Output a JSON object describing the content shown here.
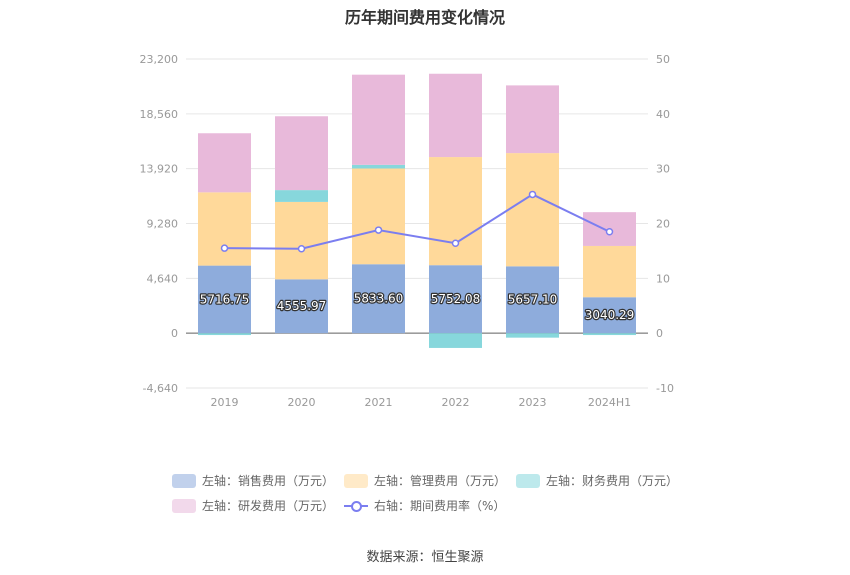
{
  "title": "历年期间费用变化情况",
  "source": "数据来源：恒生聚源",
  "legend": [
    {
      "label": "左轴：销售费用（万元）",
      "color": "#8eacdc",
      "kind": "bar"
    },
    {
      "label": "左轴：管理费用（万元）",
      "color": "#ffd99a",
      "kind": "bar"
    },
    {
      "label": "左轴：财务费用（万元）",
      "color": "#87d7dc",
      "kind": "bar"
    },
    {
      "label": "左轴：研发费用（万元）",
      "color": "#e8b9da",
      "kind": "bar"
    },
    {
      "label": "右轴：期间费用率（%）",
      "color": "#7b7ef0",
      "kind": "line"
    }
  ],
  "chart_data": {
    "type": "bar",
    "stacked": true,
    "categories": [
      "2019",
      "2020",
      "2021",
      "2022",
      "2023",
      "2024H1"
    ],
    "left_axis": {
      "ylim": [
        -4640,
        23200
      ],
      "ticks": [
        -4640,
        0,
        4640,
        9280,
        13920,
        18560,
        23200
      ],
      "tick_labels": [
        "-4,640",
        "0",
        "4,640",
        "9,280",
        "13,920",
        "18,560",
        "23,200"
      ]
    },
    "right_axis": {
      "ylim": [
        -10,
        50
      ],
      "ticks": [
        -10,
        0,
        10,
        20,
        30,
        40,
        50
      ],
      "tick_labels": [
        "-10",
        "0",
        "10",
        "20",
        "30",
        "40",
        "50"
      ]
    },
    "series": [
      {
        "name": "左轴：销售费用（万元）",
        "axis": "left",
        "color": "#8eacdc",
        "values": [
          5716.75,
          4555.97,
          5833.6,
          5752.08,
          5657.1,
          3040.29
        ],
        "labels": [
          "5716.75",
          "4555.97",
          "5833.60",
          "5752.08",
          "5657.10",
          "3040.29"
        ]
      },
      {
        "name": "左轴：管理费用（万元）",
        "axis": "left",
        "color": "#ffd99a",
        "values": [
          6200,
          6550,
          8100,
          9150,
          9580,
          4340
        ]
      },
      {
        "name": "左轴：财务费用（万元）",
        "axis": "left",
        "color": "#87d7dc",
        "values": [
          -160,
          1000,
          310,
          -1250,
          -380,
          -160
        ]
      },
      {
        "name": "左轴：研发费用（万元）",
        "axis": "left",
        "color": "#e8b9da",
        "values": [
          5000,
          6250,
          7630,
          7050,
          5730,
          2860
        ]
      },
      {
        "name": "右轴：期间费用率（%）",
        "axis": "right",
        "type": "line",
        "color": "#7b7ef0",
        "values": [
          15.5,
          15.4,
          18.8,
          16.4,
          25.3,
          18.5
        ]
      }
    ],
    "grid": true,
    "legend_position": "bottom"
  }
}
